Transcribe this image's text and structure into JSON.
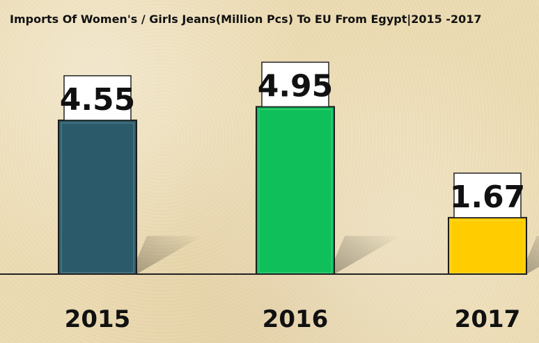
{
  "chart_data": {
    "type": "bar",
    "title": "Imports Of Women's / Girls Jeans(Million Pcs) To EU From Egypt|2015 -2017",
    "categories": [
      "2015",
      "2016",
      "2017"
    ],
    "values": [
      4.55,
      4.95,
      1.67
    ],
    "value_labels": [
      "4.55",
      "4.95",
      "1.67"
    ],
    "xlabel": "",
    "ylabel": "",
    "ylim": [
      0,
      5.5
    ],
    "grid": false,
    "legend": "none",
    "colors": [
      "#2b5b6a",
      "#0fbf5a",
      "#ffcc00"
    ]
  }
}
